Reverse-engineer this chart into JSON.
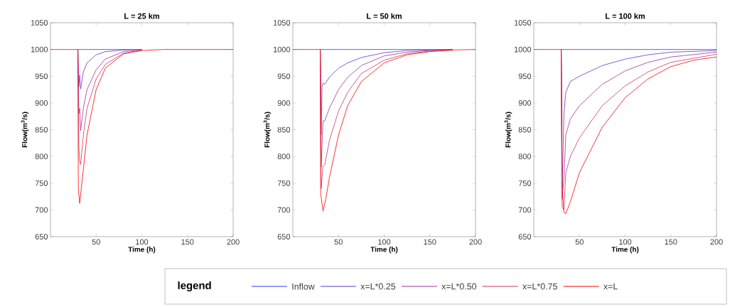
{
  "chart_data": [
    {
      "type": "line",
      "title": "L = 25 km",
      "xlabel": "Time (h)",
      "ylabel": "Flow(m$^{3}$/s)",
      "xlim": [
        0,
        200
      ],
      "ylim": [
        650,
        1050
      ],
      "xticks": [
        50,
        100,
        150,
        200
      ],
      "yticks": [
        650,
        700,
        750,
        800,
        850,
        900,
        950,
        1000,
        1050
      ],
      "legend": "bottom",
      "legend_title": "legend",
      "series": [
        {
          "name": "Inflow",
          "color": "#3333ff",
          "x": [
            30,
            100
          ],
          "values": [
            1000,
            1000
          ]
        },
        {
          "name": "x=L*0.25",
          "color": "#6633cc",
          "x": [
            30,
            31,
            32,
            33,
            36,
            40,
            50,
            60,
            80,
            100
          ],
          "values": [
            1000,
            930,
            952,
            926,
            958,
            975,
            990,
            996,
            999,
            1000
          ]
        },
        {
          "name": "x=L*0.50",
          "color": "#993399",
          "x": [
            30,
            31,
            32,
            33,
            36,
            40,
            50,
            60,
            80,
            100
          ],
          "values": [
            1000,
            880,
            890,
            848,
            890,
            925,
            962,
            982,
            996,
            999
          ]
        },
        {
          "name": "x=L*0.75",
          "color": "#cc3366",
          "x": [
            30,
            31,
            32,
            33,
            36,
            40,
            50,
            60,
            80,
            100
          ],
          "values": [
            1000,
            820,
            790,
            785,
            840,
            890,
            945,
            972,
            993,
            999
          ]
        },
        {
          "name": "x=L",
          "color": "#ff0000",
          "x": [
            0,
            30,
            30.5,
            32,
            35,
            40,
            50,
            60,
            80,
            100,
            125,
            200
          ],
          "values": [
            1000,
            1000,
            740,
            712,
            760,
            840,
            925,
            965,
            992,
            998,
            1000,
            1000
          ]
        }
      ]
    },
    {
      "type": "line",
      "title": "L = 50 km",
      "xlabel": "Time (h)",
      "ylabel": "Flow(m$^{3}$/s)",
      "xlim": [
        0,
        200
      ],
      "ylim": [
        650,
        1050
      ],
      "xticks": [
        50,
        100,
        150,
        200
      ],
      "yticks": [
        650,
        700,
        750,
        800,
        850,
        900,
        950,
        1000,
        1050
      ],
      "series": [
        {
          "color": "#3333ff",
          "x": [
            30,
            175
          ],
          "values": [
            1000,
            1000
          ]
        },
        {
          "color": "#6633cc",
          "x": [
            30,
            31,
            32,
            33,
            35,
            40,
            50,
            60,
            75,
            100,
            125,
            150,
            175
          ],
          "values": [
            1000,
            840,
            930,
            937,
            935,
            948,
            965,
            975,
            985,
            994,
            998,
            999,
            1000
          ]
        },
        {
          "color": "#993399",
          "x": [
            30,
            31,
            33,
            35,
            40,
            50,
            60,
            75,
            100,
            125,
            150,
            175
          ],
          "values": [
            1000,
            780,
            866,
            867,
            890,
            925,
            948,
            970,
            988,
            995,
            998,
            999
          ]
        },
        {
          "color": "#cc3366",
          "x": [
            30,
            31,
            33,
            35,
            40,
            50,
            60,
            75,
            100,
            125,
            150,
            175
          ],
          "values": [
            1000,
            740,
            782,
            785,
            830,
            885,
            920,
            955,
            980,
            992,
            997,
            999
          ]
        },
        {
          "color": "#ff0000",
          "x": [
            0,
            30,
            30.5,
            33,
            36,
            40,
            50,
            60,
            75,
            100,
            125,
            150,
            175,
            200
          ],
          "values": [
            1000,
            1000,
            730,
            698,
            720,
            760,
            840,
            895,
            940,
            975,
            990,
            996,
            999,
            1000
          ]
        }
      ]
    },
    {
      "type": "line",
      "title": "L = 100 km",
      "xlabel": "Time (h)",
      "ylabel": "Flow(m$^{3}$/s)",
      "xlim": [
        0,
        200
      ],
      "ylim": [
        650,
        1050
      ],
      "xticks": [
        50,
        100,
        150,
        200
      ],
      "yticks": [
        650,
        700,
        750,
        800,
        850,
        900,
        950,
        1000,
        1050
      ],
      "series": [
        {
          "color": "#3333ff",
          "x": [
            30,
            200
          ],
          "values": [
            1000,
            1000
          ]
        },
        {
          "color": "#6633cc",
          "x": [
            30,
            31,
            33,
            35,
            40,
            50,
            75,
            100,
            125,
            150,
            200
          ],
          "values": [
            1000,
            740,
            880,
            920,
            940,
            950,
            970,
            982,
            990,
            995,
            998
          ]
        },
        {
          "color": "#993399",
          "x": [
            30,
            31,
            33,
            35,
            40,
            50,
            75,
            100,
            125,
            150,
            200
          ],
          "values": [
            1000,
            720,
            760,
            840,
            870,
            895,
            935,
            960,
            976,
            986,
            995
          ]
        },
        {
          "color": "#cc3366",
          "x": [
            30,
            31,
            33,
            35,
            40,
            50,
            75,
            100,
            125,
            150,
            200
          ],
          "values": [
            1000,
            705,
            700,
            770,
            800,
            835,
            895,
            932,
            958,
            976,
            991
          ]
        },
        {
          "color": "#ff0000",
          "x": [
            0,
            30,
            30.5,
            31,
            33,
            35,
            40,
            50,
            75,
            100,
            125,
            150,
            175,
            200
          ],
          "values": [
            1000,
            1000,
            880,
            740,
            695,
            693,
            715,
            770,
            855,
            910,
            945,
            968,
            980,
            986
          ]
        }
      ]
    }
  ]
}
